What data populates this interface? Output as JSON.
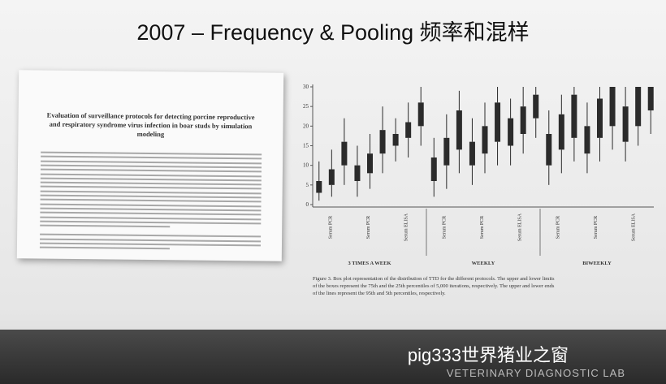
{
  "title": "2007 – Frequency & Pooling 频率和混样",
  "paper": {
    "title": "Evaluation of surveillance protocols for detecting porcine reproductive and respiratory syndrome virus infection in boar studs by simulation modeling"
  },
  "chart_data": {
    "type": "box",
    "ylim": [
      0,
      30
    ],
    "yticks": [
      0,
      5,
      10,
      15,
      20,
      25,
      30
    ],
    "groups": [
      "3 TIMES A WEEK",
      "WEEKLY",
      "BIWEEKLY"
    ],
    "subgroups": [
      "Serum PCR",
      "Serum PCR",
      "Serum ELISA",
      "Serum PCR",
      "Serum PCR",
      "Serum ELISA",
      "Serum PCR",
      "Serum PCR",
      "Serum ELISA"
    ],
    "color": "#2b2b2b",
    "boxes": [
      [
        1,
        3,
        6,
        11
      ],
      [
        2,
        5,
        9,
        14
      ],
      [
        5,
        10,
        16,
        22
      ],
      [
        2,
        6,
        10,
        15
      ],
      [
        4,
        8,
        13,
        18
      ],
      [
        8,
        13,
        19,
        25
      ],
      [
        11,
        15,
        18,
        22
      ],
      [
        12,
        17,
        21,
        26
      ],
      [
        15,
        20,
        26,
        30
      ],
      [
        2,
        6,
        12,
        17
      ],
      [
        4,
        10,
        17,
        23
      ],
      [
        8,
        14,
        24,
        29
      ],
      [
        5,
        10,
        16,
        22
      ],
      [
        8,
        13,
        20,
        26
      ],
      [
        10,
        16,
        26,
        30
      ],
      [
        10,
        15,
        22,
        27
      ],
      [
        13,
        18,
        25,
        30
      ],
      [
        17,
        22,
        28,
        30
      ],
      [
        5,
        10,
        18,
        24
      ],
      [
        8,
        14,
        23,
        28
      ],
      [
        11,
        17,
        28,
        30
      ],
      [
        8,
        13,
        20,
        26
      ],
      [
        11,
        17,
        27,
        30
      ],
      [
        14,
        20,
        30,
        30
      ],
      [
        11,
        16,
        25,
        30
      ],
      [
        15,
        20,
        30,
        30
      ],
      [
        18,
        24,
        30,
        30
      ]
    ],
    "caption": "Figure 3.  Box plot representation of the distribution of TTD for the different protocols. The upper and lower limits of the boxes represent the 75th and the 25th percentiles of 5,000 iterations, respectively. The upper and lower ends of the lines represent the 95th and 5th percentiles, respectively."
  },
  "footer": {
    "brand": "pig333世界猪业之窗",
    "lab": "VETERINARY DIAGNOSTIC LAB"
  }
}
